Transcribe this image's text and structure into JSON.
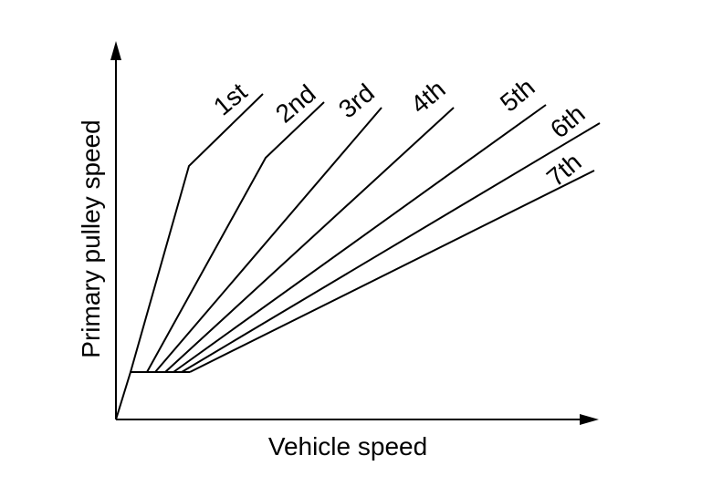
{
  "axes": {
    "x_label": "Vehicle speed",
    "y_label": "Primary pulley speed"
  },
  "gears": [
    {
      "label": "1st"
    },
    {
      "label": "2nd"
    },
    {
      "label": "3rd"
    },
    {
      "label": "4th"
    },
    {
      "label": "5th"
    },
    {
      "label": "6th"
    },
    {
      "label": "7th"
    }
  ]
}
